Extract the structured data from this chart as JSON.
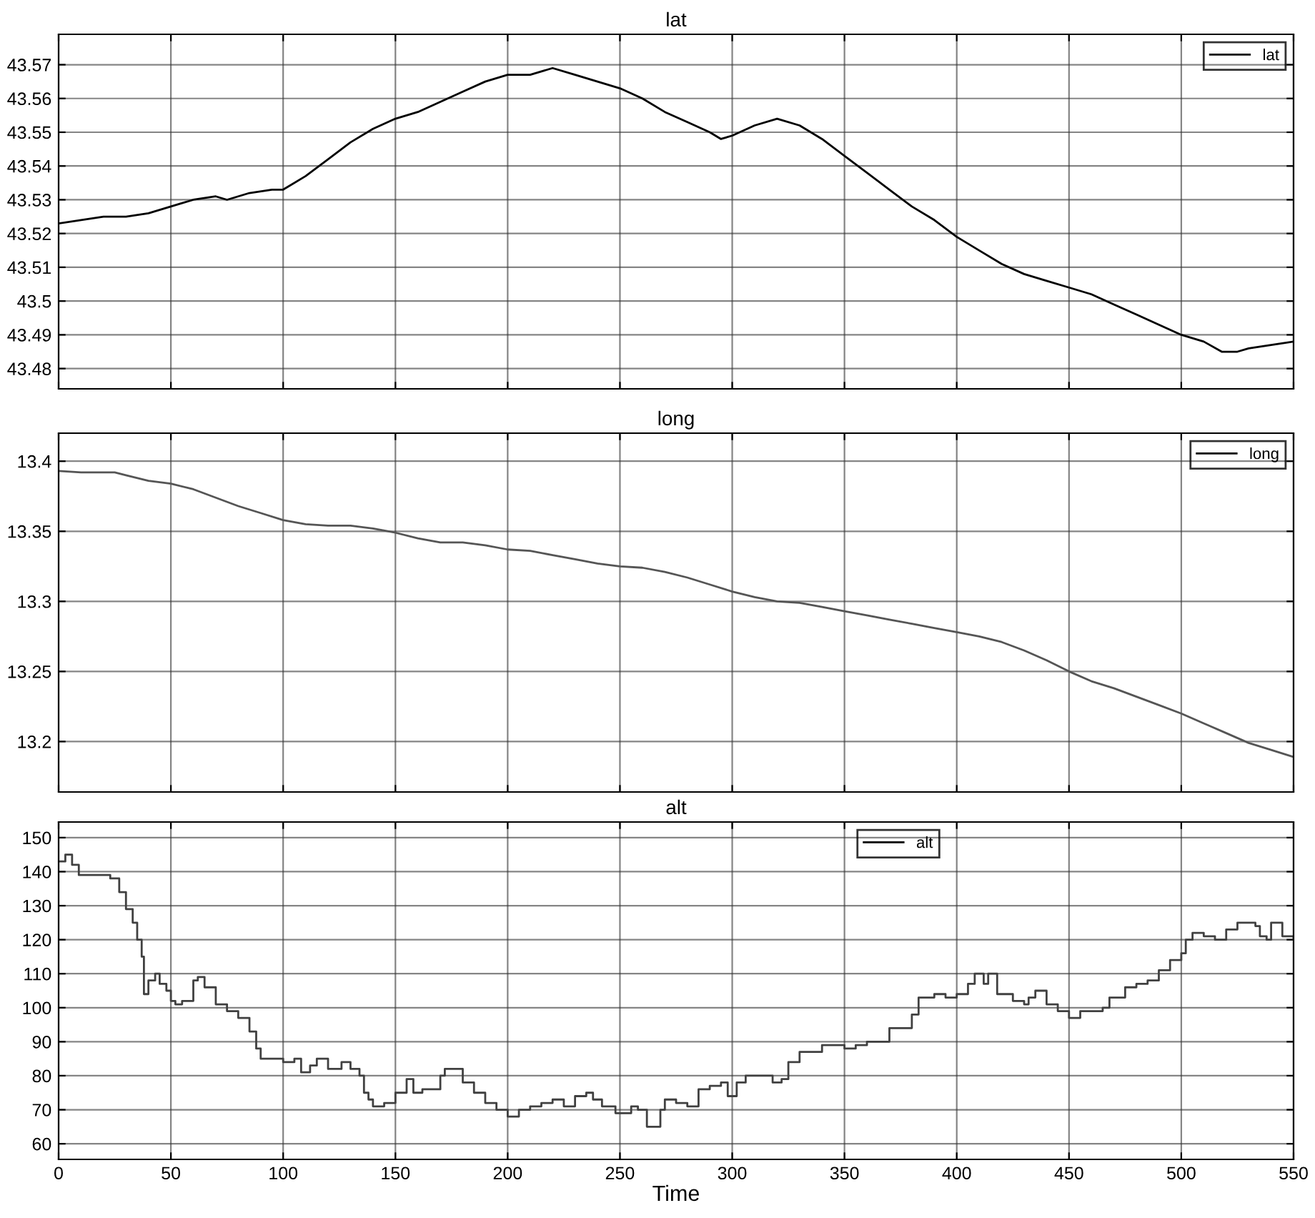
{
  "chart_data": [
    {
      "type": "line",
      "title": "lat",
      "x": [
        0,
        10,
        20,
        30,
        40,
        50,
        55,
        60,
        70,
        75,
        85,
        95,
        100,
        110,
        120,
        130,
        140,
        150,
        160,
        170,
        180,
        190,
        200,
        210,
        220,
        230,
        240,
        250,
        260,
        270,
        280,
        290,
        295,
        300,
        310,
        320,
        330,
        340,
        350,
        360,
        370,
        380,
        390,
        400,
        410,
        420,
        430,
        440,
        450,
        460,
        470,
        480,
        490,
        500,
        510,
        518,
        525,
        530,
        540,
        550
      ],
      "series": [
        {
          "name": "lat",
          "color": "#000000",
          "values": [
            43.523,
            43.524,
            43.525,
            43.525,
            43.526,
            43.528,
            43.529,
            43.53,
            43.531,
            43.53,
            43.532,
            43.533,
            43.533,
            43.537,
            43.542,
            43.547,
            43.551,
            43.554,
            43.556,
            43.559,
            43.562,
            43.565,
            43.567,
            43.567,
            43.569,
            43.567,
            43.565,
            43.563,
            43.56,
            43.556,
            43.553,
            43.55,
            43.548,
            43.549,
            43.552,
            43.554,
            43.552,
            43.548,
            43.543,
            43.538,
            43.533,
            43.528,
            43.524,
            43.519,
            43.515,
            43.511,
            43.508,
            43.506,
            43.504,
            43.502,
            43.499,
            43.496,
            43.493,
            43.49,
            43.488,
            43.485,
            43.485,
            43.486,
            43.487,
            43.488
          ]
        }
      ],
      "xlim": [
        0,
        550
      ],
      "xticks": [
        0,
        50,
        100,
        150,
        200,
        250,
        300,
        350,
        400,
        450,
        500,
        550
      ],
      "ylim": [
        43.474,
        43.579
      ],
      "yticks": [
        43.48,
        43.49,
        43.5,
        43.51,
        43.52,
        43.53,
        43.54,
        43.55,
        43.56,
        43.57
      ],
      "grid": true,
      "legend": "top right",
      "tick_labels": "y"
    },
    {
      "type": "line",
      "title": "long",
      "x": [
        0,
        10,
        20,
        25,
        30,
        40,
        50,
        60,
        70,
        80,
        90,
        100,
        110,
        120,
        130,
        140,
        150,
        160,
        170,
        180,
        190,
        200,
        210,
        220,
        230,
        240,
        250,
        260,
        270,
        280,
        290,
        300,
        310,
        320,
        330,
        340,
        350,
        360,
        370,
        380,
        390,
        400,
        410,
        420,
        430,
        440,
        450,
        460,
        470,
        480,
        490,
        500,
        510,
        520,
        530,
        540,
        550
      ],
      "series": [
        {
          "name": "long",
          "color": "#555555",
          "values": [
            13.393,
            13.392,
            13.392,
            13.392,
            13.39,
            13.386,
            13.384,
            13.38,
            13.374,
            13.368,
            13.363,
            13.358,
            13.355,
            13.354,
            13.354,
            13.352,
            13.349,
            13.345,
            13.342,
            13.342,
            13.34,
            13.337,
            13.336,
            13.333,
            13.33,
            13.327,
            13.325,
            13.324,
            13.321,
            13.317,
            13.312,
            13.307,
            13.303,
            13.3,
            13.299,
            13.296,
            13.293,
            13.29,
            13.287,
            13.284,
            13.281,
            13.278,
            13.275,
            13.271,
            13.265,
            13.258,
            13.25,
            13.243,
            13.238,
            13.232,
            13.226,
            13.22,
            13.213,
            13.206,
            13.199,
            13.194,
            13.189
          ]
        }
      ],
      "xlim": [
        0,
        550
      ],
      "xticks": [
        0,
        50,
        100,
        150,
        200,
        250,
        300,
        350,
        400,
        450,
        500,
        550
      ],
      "ylim": [
        13.164,
        13.42
      ],
      "yticks": [
        13.2,
        13.25,
        13.3,
        13.35,
        13.4
      ],
      "grid": true,
      "legend": "top right",
      "tick_labels": "y"
    },
    {
      "type": "step",
      "title": "alt",
      "xlabel": "Time",
      "x": [
        0,
        3,
        5,
        6,
        9,
        20,
        23,
        27,
        30,
        33,
        35,
        37,
        38,
        40,
        43,
        45,
        48,
        50,
        52,
        55,
        58,
        60,
        62,
        65,
        70,
        75,
        80,
        85,
        88,
        90,
        95,
        100,
        105,
        108,
        112,
        115,
        120,
        126,
        130,
        134,
        136,
        138,
        140,
        145,
        150,
        155,
        158,
        162,
        166,
        170,
        172,
        176,
        180,
        185,
        190,
        195,
        200,
        205,
        210,
        215,
        220,
        225,
        230,
        235,
        238,
        242,
        248,
        255,
        258,
        262,
        268,
        270,
        275,
        280,
        285,
        290,
        295,
        298,
        302,
        306,
        312,
        318,
        322,
        325,
        330,
        335,
        340,
        345,
        350,
        355,
        360,
        365,
        370,
        375,
        380,
        383,
        390,
        395,
        400,
        405,
        408,
        412,
        414,
        418,
        425,
        430,
        432,
        435,
        440,
        445,
        450,
        455,
        460,
        465,
        468,
        475,
        480,
        485,
        490,
        495,
        500,
        502,
        505,
        510,
        515,
        520,
        525,
        530,
        533,
        535,
        538,
        540,
        545,
        550
      ],
      "series": [
        {
          "name": "alt",
          "color": "#404040",
          "values": [
            143,
            145,
            145,
            142,
            139,
            139,
            138,
            134,
            129,
            125,
            120,
            115,
            104,
            108,
            110,
            107,
            105,
            102,
            101,
            102,
            102,
            108,
            109,
            106,
            101,
            99,
            97,
            93,
            88,
            85,
            85,
            84,
            85,
            81,
            83,
            85,
            82,
            84,
            82,
            80,
            75,
            73,
            71,
            72,
            75,
            79,
            75,
            76,
            76,
            80,
            82,
            82,
            78,
            75,
            72,
            70,
            68,
            70,
            71,
            72,
            73,
            71,
            74,
            75,
            73,
            71,
            69,
            71,
            70,
            65,
            70,
            73,
            72,
            71,
            76,
            77,
            78,
            74,
            78,
            80,
            80,
            78,
            79,
            84,
            87,
            87,
            89,
            89,
            88,
            89,
            90,
            90,
            94,
            94,
            98,
            103,
            104,
            103,
            104,
            107,
            110,
            107,
            110,
            104,
            102,
            101,
            103,
            105,
            101,
            99,
            97,
            99,
            99,
            100,
            103,
            106,
            107,
            108,
            111,
            114,
            116,
            120,
            122,
            121,
            120,
            123,
            125,
            125,
            124,
            121,
            120,
            125,
            121,
            120
          ]
        }
      ],
      "xlim": [
        0,
        550
      ],
      "xticks": [
        0,
        50,
        100,
        150,
        200,
        250,
        300,
        350,
        400,
        450,
        500,
        550
      ],
      "ylim": [
        55.4,
        154.6
      ],
      "yticks": [
        60,
        70,
        80,
        90,
        100,
        110,
        120,
        130,
        140,
        150
      ],
      "grid": true,
      "legend": "top"
    }
  ]
}
